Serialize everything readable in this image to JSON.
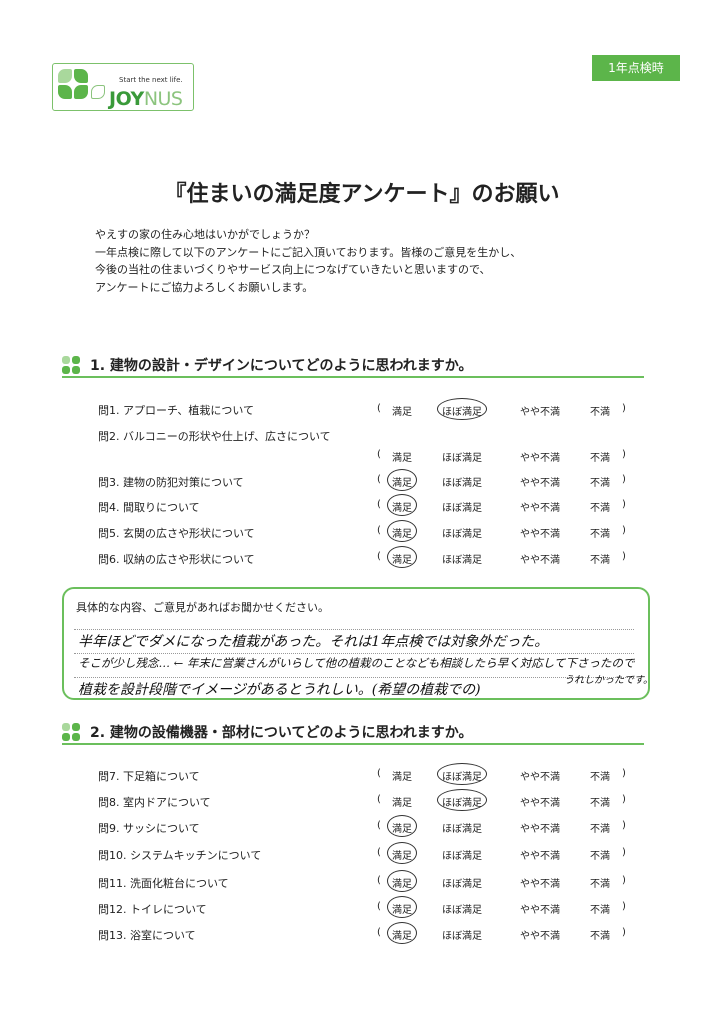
{
  "logo": {
    "tagline": "Start the next life.",
    "brand_bold": "JOY",
    "brand_light": "NUS",
    "colors": [
      "#5cb54a",
      "#a9d89c"
    ]
  },
  "badge": "1年点検時",
  "title": "『住まいの満足度アンケート』のお願い",
  "intro": [
    "やえすの家の住み心地はいかがでしょうか？",
    "一年点検に際して以下のアンケートにご記入頂いております。皆様のご意見を生かし、",
    "今後の当社の住まいづくりやサービス向上につなげていきたいと思いますので、",
    "アンケートにご協力よろしくお願いします。"
  ],
  "options": [
    "満足",
    "ほぼ満足",
    "やや不満",
    "不満"
  ],
  "paren_open": "(",
  "paren_close": ")",
  "section1": {
    "title": "1. 建物の設計・デザインについてどのように思われますか。",
    "questions": [
      {
        "label": "問1. アプローチ、植栽について",
        "selected": "ほぼ満足"
      },
      {
        "label": "問2. バルコニーの形状や仕上げ、広さについて",
        "selected": null
      },
      {
        "label": "問3. 建物の防犯対策について",
        "selected": "満足"
      },
      {
        "label": "問4. 間取りについて",
        "selected": "満足"
      },
      {
        "label": "問5. 玄関の広さや形状について",
        "selected": "満足"
      },
      {
        "label": "問6. 収納の広さや形状について",
        "selected": "満足"
      }
    ]
  },
  "comment": {
    "prompt": "具体的な内容、ご意見があればお聞かせください。",
    "lines": [
      "半年ほどでダメになった植栽があった。それは1年点検では対象外だった。",
      "そこが少し残念… ← 年末に営業さんがいらして他の植栽のことなども相談したら早く対応して下さったので",
      "植栽を設計段階でイメージがあるとうれしい。(希望の植栽での)"
    ],
    "line2_tail": "うれしかったです。"
  },
  "section2": {
    "title": "2. 建物の設備機器・部材についてどのように思われますか。",
    "questions": [
      {
        "label": "問7. 下足箱について",
        "selected": "ほぼ満足"
      },
      {
        "label": "問8. 室内ドアについて",
        "selected": "ほぼ満足"
      },
      {
        "label": "問9. サッシについて",
        "selected": "満足"
      },
      {
        "label": "問10. システムキッチンについて",
        "selected": "満足"
      },
      {
        "label": "問11. 洗面化粧台について",
        "selected": "満足"
      },
      {
        "label": "問12. トイレについて",
        "selected": "満足"
      },
      {
        "label": "問13. 浴室について",
        "selected": "満足"
      }
    ]
  }
}
